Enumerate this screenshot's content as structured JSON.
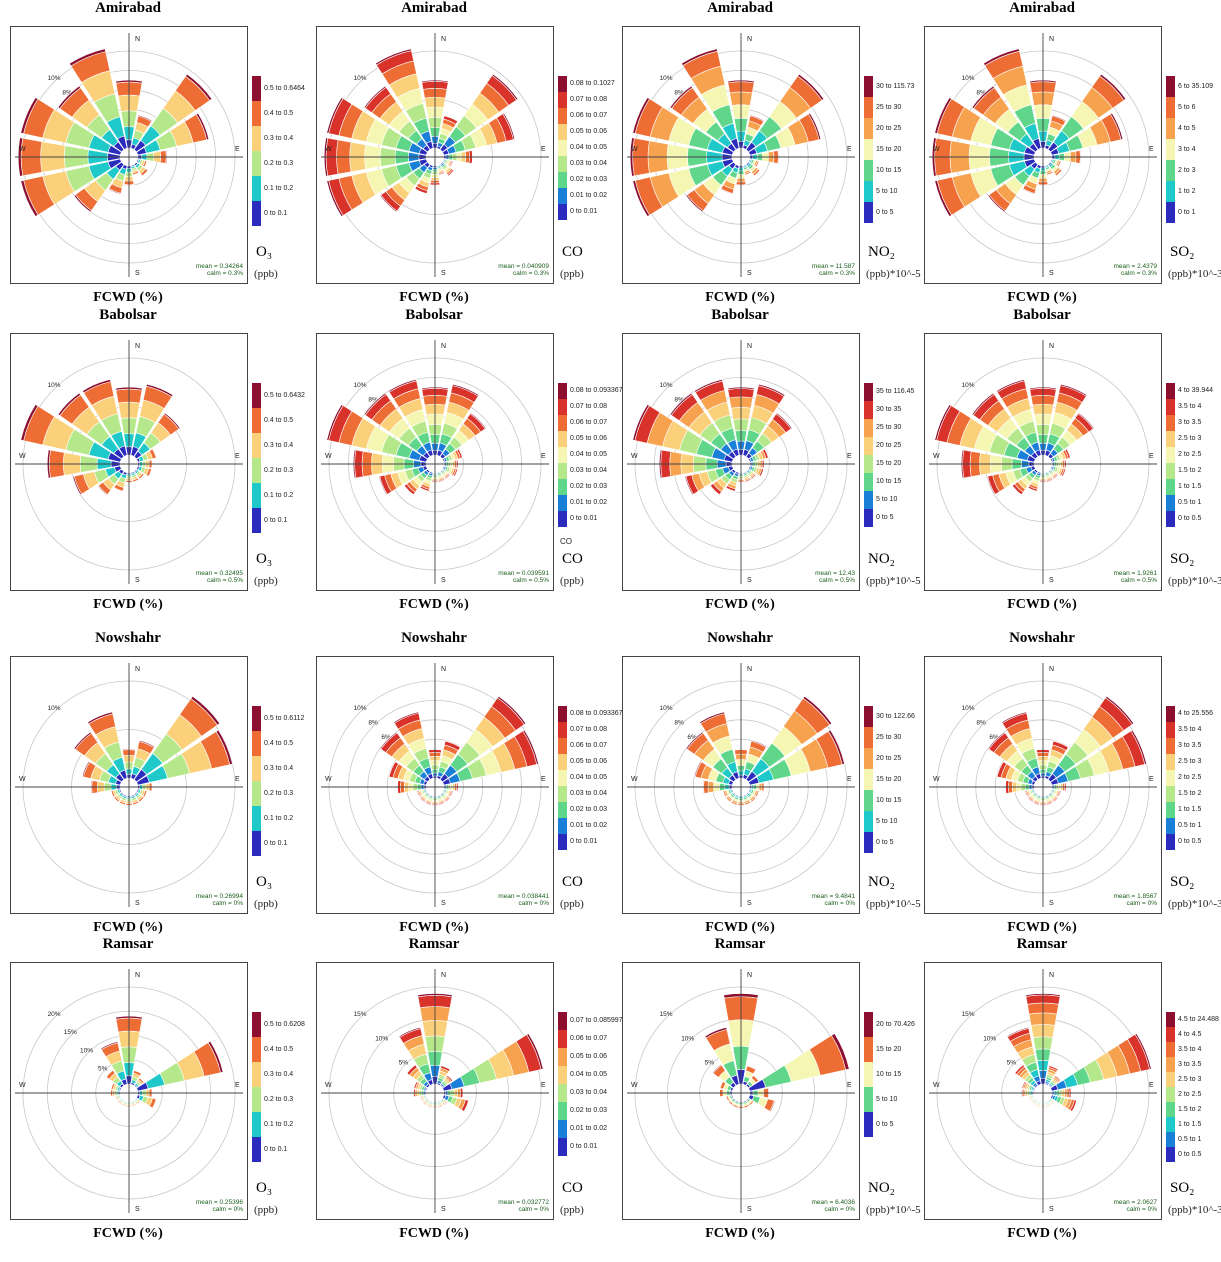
{
  "chart_data": [
    {
      "type": "windrose",
      "station": "Amirabad",
      "pollutant": "O₃",
      "unit": "(ppb)",
      "xlabel": "FCWD (%)",
      "mean": "mean = 0.34264",
      "calm": "calm = 0.3%",
      "rings": [
        "2%",
        "4%",
        "6%",
        "8%",
        "10%"
      ],
      "directions": [
        "N",
        "E",
        "S",
        "W"
      ],
      "legend": [
        "0.5 to 0.6464",
        "0.4 to 0.5",
        "0.3 to 0.4",
        "0.2 to 0.3",
        "0.1 to 0.2",
        "0 to 0.1"
      ],
      "frequency_percent": [
        7,
        3.5,
        9.5,
        7.5,
        3,
        1,
        1.5,
        1,
        2,
        3,
        6,
        11,
        12,
        11,
        8,
        10.5
      ]
    },
    {
      "type": "windrose",
      "station": "Amirabad",
      "pollutant": "CO",
      "unit": "(ppb)",
      "xlabel": "FCWD (%)",
      "mean": "mean = 0.040909",
      "calm": "calm = 0.3%",
      "rings": [
        "5%",
        "10%"
      ],
      "directions": [
        "N",
        "E",
        "S",
        "W"
      ],
      "legend": [
        "0.08 to 0.1027",
        "0.07 to 0.08",
        "0.06 to 0.07",
        "0.05 to 0.06",
        "0.04 to 0.05",
        "0.03 to 0.04",
        "0.02 to 0.03",
        "0.01 to 0.02",
        "0 to 0.01"
      ],
      "frequency_percent": [
        7,
        3.5,
        9.5,
        7.5,
        3,
        1,
        1.5,
        1,
        2,
        3,
        6,
        11,
        12,
        11,
        8,
        10.5
      ]
    },
    {
      "type": "windrose",
      "station": "Amirabad",
      "pollutant": "NO₂",
      "unit": "(ppb)*10^-5",
      "xlabel": "FCWD (%)",
      "mean": "mean = 11.587",
      "calm": "calm = 0.3%",
      "rings": [
        "2%",
        "4%",
        "6%",
        "8%",
        "10%"
      ],
      "directions": [
        "N",
        "E",
        "S",
        "W"
      ],
      "legend": [
        "30 to 115.73",
        "25 to 30",
        "20 to 25",
        "15 to 20",
        "10 to 15",
        "5 to 10",
        "0 to 5"
      ],
      "frequency_percent": [
        7,
        3.5,
        9.5,
        7.5,
        3,
        1,
        1.5,
        1,
        2,
        3,
        6,
        11,
        12,
        11,
        8,
        10.5
      ]
    },
    {
      "type": "windrose",
      "station": "Amirabad",
      "pollutant": "SO₂",
      "unit": "(ppb)*10^-3",
      "xlabel": "FCWD (%)",
      "mean": "mean = 2.4379",
      "calm": "calm = 0.3%",
      "rings": [
        "2%",
        "4%",
        "6%",
        "8%",
        "10%"
      ],
      "directions": [
        "N",
        "E",
        "S",
        "W"
      ],
      "legend": [
        "6 to 35.109",
        "5 to 6",
        "4 to 5",
        "3 to 4",
        "2 to 3",
        "1 to 2",
        "0 to 1"
      ],
      "frequency_percent": [
        7,
        3.5,
        9.5,
        7.5,
        3,
        1,
        1.5,
        1,
        2,
        3,
        6,
        11,
        12,
        11,
        8,
        10.5
      ]
    },
    {
      "type": "windrose",
      "station": "Babolsar",
      "pollutant": "O₃",
      "unit": "(ppb)",
      "xlabel": "FCWD (%)",
      "mean": "mean = 0.32495",
      "calm": "calm = 0.5%",
      "rings": [
        "5%",
        "10%"
      ],
      "directions": [
        "N",
        "E",
        "S",
        "W"
      ],
      "legend": [
        "0.5 to 0.6432",
        "0.4 to 0.5",
        "0.3 to 0.4",
        "0.2 to 0.3",
        "0.1 to 0.2",
        "0 to 0.1"
      ],
      "frequency_percent": [
        7,
        7.5,
        5.5,
        2,
        1.5,
        1.5,
        1,
        1,
        1,
        2,
        3,
        5,
        7.5,
        11,
        8,
        8
      ]
    },
    {
      "type": "windrose",
      "station": "Babolsar",
      "pollutant": "CO",
      "unit": "(ppb)",
      "xlabel": "FCWD (%)",
      "mean": "mean = 0.039591",
      "calm": "calm = 0.5%",
      "rings": [
        "2%",
        "4%",
        "6%",
        "8%",
        "10%"
      ],
      "directions": [
        "N",
        "E",
        "S",
        "W"
      ],
      "legend": [
        "0.08 to 0.093367",
        "0.07 to 0.08",
        "0.06 to 0.07",
        "0.05 to 0.06",
        "0.04 to 0.05",
        "0.03 to 0.04",
        "0.02 to 0.03",
        "0.01 to 0.02",
        "0 to 0.01"
      ],
      "frequency_percent": [
        7,
        7.5,
        5.5,
        2,
        1.5,
        1.5,
        1,
        1,
        1,
        2,
        3,
        5,
        7.5,
        11,
        8,
        8
      ]
    },
    {
      "type": "windrose",
      "station": "Babolsar",
      "pollutant": "NO₂",
      "unit": "(ppb)*10^-5",
      "xlabel": "FCWD (%)",
      "mean": "mean = 12.43",
      "calm": "calm = 0.5%",
      "rings": [
        "2%",
        "4%",
        "6%",
        "8%",
        "10%"
      ],
      "directions": [
        "N",
        "E",
        "S",
        "W"
      ],
      "legend": [
        "35 to 116.45",
        "30 to 35",
        "25 to 30",
        "20 to 25",
        "15 to 20",
        "10 to 15",
        "5 to 10",
        "0 to 5"
      ],
      "frequency_percent": [
        7,
        7.5,
        5.5,
        2,
        1.5,
        1.5,
        1,
        1,
        1,
        2,
        3,
        5,
        7.5,
        11,
        8,
        8
      ]
    },
    {
      "type": "windrose",
      "station": "Babolsar",
      "pollutant": "SO₂",
      "unit": "(ppb)*10^-3",
      "xlabel": "FCWD (%)",
      "mean": "mean = 1.9261",
      "calm": "calm = 0.5%",
      "rings": [
        "5%",
        "10%"
      ],
      "directions": [
        "N",
        "E",
        "S",
        "W"
      ],
      "legend": [
        "4 to 39.944",
        "3.5 to 4",
        "3 to 3.5",
        "2.5 to 3",
        "2 to 2.5",
        "1.5 to 2",
        "1 to 1.5",
        "0.5 to 1",
        "0 to 0.5"
      ],
      "frequency_percent": [
        7,
        7.5,
        5.5,
        2,
        1.5,
        1.5,
        1,
        1,
        1,
        2,
        3,
        5,
        7.5,
        11,
        8,
        8
      ]
    },
    {
      "type": "windrose",
      "station": "Nowshahr",
      "pollutant": "O₃",
      "unit": "(ppb)",
      "xlabel": "FCWD (%)",
      "mean": "mean = 0.26994",
      "calm": "calm = 0%",
      "rings": [
        "5%",
        "10%"
      ],
      "directions": [
        "N",
        "E",
        "S",
        "W"
      ],
      "legend": [
        "0.5 to 0.6112",
        "0.4 to 0.5",
        "0.3 to 0.4",
        "0.2 to 0.3",
        "0.1 to 0.2",
        "0 to 0.1"
      ],
      "frequency_percent": [
        3,
        4,
        11,
        10,
        1.5,
        1,
        1,
        1,
        1,
        1,
        1,
        1,
        3,
        4,
        6,
        7
      ]
    },
    {
      "type": "windrose",
      "station": "Nowshahr",
      "pollutant": "CO",
      "unit": "(ppb)",
      "xlabel": "FCWD (%)",
      "mean": "mean = 0.038441",
      "calm": "calm = 0%",
      "rings": [
        "2%",
        "4%",
        "6%",
        "8%",
        "10%"
      ],
      "directions": [
        "N",
        "E",
        "S",
        "W"
      ],
      "legend": [
        "0.08 to 0.093367",
        "0.07 to 0.08",
        "0.06 to 0.07",
        "0.05 to 0.06",
        "0.04 to 0.05",
        "0.03 to 0.04",
        "0.02 to 0.03",
        "0.01 to 0.02",
        "0 to 0.01"
      ],
      "frequency_percent": [
        3,
        4,
        11,
        10,
        1.5,
        1,
        1,
        1,
        1,
        1,
        1,
        1,
        3,
        4,
        6,
        7
      ]
    },
    {
      "type": "windrose",
      "station": "Nowshahr",
      "pollutant": "NO₂",
      "unit": "(ppb)*10^-5",
      "xlabel": "FCWD (%)",
      "mean": "mean = 9.4841",
      "calm": "calm = 0%",
      "rings": [
        "2%",
        "4%",
        "6%",
        "8%",
        "10%"
      ],
      "directions": [
        "N",
        "E",
        "S",
        "W"
      ],
      "legend": [
        "30 to 122.66",
        "25 to 30",
        "20 to 25",
        "15 to 20",
        "10 to 15",
        "5 to 10",
        "0 to 5"
      ],
      "frequency_percent": [
        3,
        4,
        11,
        10,
        1.5,
        1,
        1,
        1,
        1,
        1,
        1,
        1,
        3,
        4,
        6,
        7
      ]
    },
    {
      "type": "windrose",
      "station": "Nowshahr",
      "pollutant": "SO₂",
      "unit": "(ppb)*10^-3",
      "xlabel": "FCWD (%)",
      "mean": "mean = 1.8567",
      "calm": "calm = 0%",
      "rings": [
        "2%",
        "4%",
        "6%",
        "8%",
        "10%"
      ],
      "directions": [
        "N",
        "E",
        "S",
        "W"
      ],
      "legend": [
        "4 to 25.556",
        "3.5 to 4",
        "3 to 3.5",
        "2.5 to 3",
        "2 to 2.5",
        "1.5 to 2",
        "1 to 1.5",
        "0.5 to 1",
        "0 to 0.5"
      ],
      "frequency_percent": [
        3,
        4,
        11,
        10,
        1.5,
        1,
        1,
        1,
        1,
        1,
        1,
        1,
        3,
        4,
        6,
        7
      ]
    },
    {
      "type": "windrose",
      "station": "Ramsar",
      "pollutant": "O₃",
      "unit": "(ppb)",
      "xlabel": "FCWD (%)",
      "mean": "mean = 0.25396",
      "calm": "calm = 0%",
      "rings": [
        "5%",
        "10%",
        "15%",
        "20%"
      ],
      "directions": [
        "N",
        "E",
        "S",
        "W"
      ],
      "legend": [
        "0.5 to 0.6208",
        "0.4 to 0.5",
        "0.3 to 0.4",
        "0.2 to 0.3",
        "0.1 to 0.2",
        "0 to 0.1"
      ],
      "frequency_percent": [
        14,
        3,
        2,
        18,
        3,
        4,
        1,
        1,
        1,
        1,
        1,
        1,
        2,
        2,
        4,
        9
      ]
    },
    {
      "type": "windrose",
      "station": "Ramsar",
      "pollutant": "CO",
      "unit": "(ppb)",
      "xlabel": "FCWD (%)",
      "mean": "mean = 0.032772",
      "calm": "calm = 0%",
      "rings": [
        "5%",
        "10%",
        "15%"
      ],
      "directions": [
        "N",
        "E",
        "S",
        "W"
      ],
      "legend": [
        "0.07 to 0.085997",
        "0.06 to 0.07",
        "0.05 to 0.06",
        "0.04 to 0.05",
        "0.03 to 0.04",
        "0.02 to 0.03",
        "0.01 to 0.02",
        "0 to 0.01"
      ],
      "frequency_percent": [
        14,
        3,
        2,
        18,
        3,
        4,
        1,
        1,
        1,
        1,
        1,
        1,
        2,
        2,
        4,
        9
      ]
    },
    {
      "type": "windrose",
      "station": "Ramsar",
      "pollutant": "NO₂",
      "unit": "(ppb)*10^-5",
      "xlabel": "FCWD (%)",
      "mean": "mean = 6.4036",
      "calm": "calm = 0%",
      "rings": [
        "5%",
        "10%",
        "15%"
      ],
      "directions": [
        "N",
        "E",
        "S",
        "W"
      ],
      "legend": [
        "20 to 70.426",
        "15 to 20",
        "10 to 15",
        "5 to 10",
        "0 to 5"
      ],
      "frequency_percent": [
        14,
        3,
        2,
        18,
        3,
        4,
        1,
        1,
        1,
        1,
        1,
        1,
        2,
        2,
        4,
        9
      ]
    },
    {
      "type": "windrose",
      "station": "Ramsar",
      "pollutant": "SO₂",
      "unit": "(ppb)*10^-3",
      "xlabel": "FCWD (%)",
      "mean": "mean = 2.0627",
      "calm": "calm = 0%",
      "rings": [
        "5%",
        "10%",
        "15%"
      ],
      "directions": [
        "N",
        "E",
        "S",
        "W"
      ],
      "legend": [
        "4.5 to 24.488",
        "4 to 4.5",
        "3.5 to 4",
        "3 to 3.5",
        "2.5 to 3",
        "2 to 2.5",
        "1.5 to 2",
        "1 to 1.5",
        "0.5 to 1",
        "0 to 0.5"
      ],
      "frequency_percent": [
        14,
        3,
        2,
        18,
        3,
        4,
        1,
        1,
        1,
        1,
        1,
        1,
        2,
        2,
        4,
        9
      ]
    }
  ],
  "extra_labels": {
    "babolsar_co_small": "CO"
  }
}
